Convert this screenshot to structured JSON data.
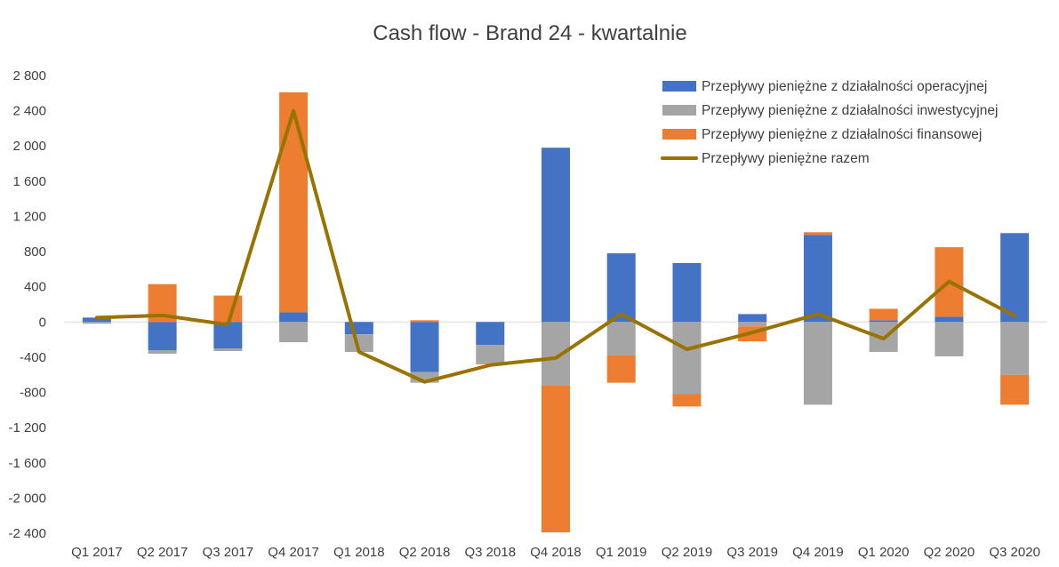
{
  "chart_data": {
    "type": "bar",
    "stacked": true,
    "title": "Cash flow - Brand 24 - kwartalnie",
    "xlabel": "",
    "ylabel": "",
    "ylim": [
      -2400,
      2800
    ],
    "yticks": [
      2800,
      2400,
      2000,
      1600,
      1200,
      800,
      400,
      0,
      -400,
      -800,
      -1200,
      -1600,
      -2000,
      -2400
    ],
    "ytick_labels": [
      "2 800",
      "2 400",
      "2 000",
      "1 600",
      "1 200",
      "800",
      "400",
      "0",
      "-400",
      "-800",
      "-1 200",
      "-1 600",
      "-2 000",
      "-2 400"
    ],
    "grid": false,
    "legend_position": "top-right",
    "categories": [
      "Q1 2017",
      "Q2 2017",
      "Q3 2017",
      "Q4 2017",
      "Q1 2018",
      "Q2 2018",
      "Q3 2018",
      "Q4 2018",
      "Q1 2019",
      "Q2 2019",
      "Q3 2019",
      "Q4 2019",
      "Q1 2020",
      "Q2 2020",
      "Q3 2020"
    ],
    "series": [
      {
        "name": "Przepływy pieniężne z działalności operacyjnej",
        "kind": "bar",
        "color": "#4472c4",
        "values": [
          50,
          -320,
          -300,
          110,
          -140,
          -570,
          -260,
          1980,
          780,
          670,
          90,
          990,
          20,
          60,
          1010
        ]
      },
      {
        "name": "Przepływy pieniężne z działalności inwestycyjnej",
        "kind": "bar",
        "color": "#a5a5a5",
        "values": [
          -20,
          -40,
          -30,
          -230,
          -200,
          -120,
          -210,
          -720,
          -380,
          -820,
          -50,
          -940,
          -340,
          -390,
          -600
        ]
      },
      {
        "name": "Przepływy pieniężne z działalności finansowej",
        "kind": "bar",
        "color": "#ed7d31",
        "values": [
          0,
          430,
          300,
          2500,
          0,
          20,
          -10,
          -1670,
          -310,
          -140,
          -170,
          30,
          130,
          790,
          -340
        ]
      },
      {
        "name": "Przepływy pieniężne razem",
        "kind": "line",
        "color": "#997300",
        "values": [
          50,
          75,
          -30,
          2400,
          -340,
          -680,
          -490,
          -410,
          90,
          -310,
          -120,
          90,
          -190,
          460,
          70
        ]
      }
    ]
  }
}
